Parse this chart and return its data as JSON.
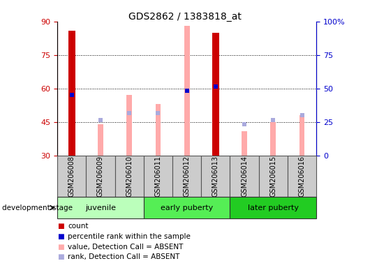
{
  "title": "GDS2862 / 1383818_at",
  "samples": [
    "GSM206008",
    "GSM206009",
    "GSM206010",
    "GSM206011",
    "GSM206012",
    "GSM206013",
    "GSM206014",
    "GSM206015",
    "GSM206016"
  ],
  "group_info": [
    {
      "label": "juvenile",
      "indices": [
        0,
        1,
        2
      ],
      "color": "#bbffbb"
    },
    {
      "label": "early puberty",
      "indices": [
        3,
        4,
        5
      ],
      "color": "#55ee55"
    },
    {
      "label": "later puberty",
      "indices": [
        6,
        7,
        8
      ],
      "color": "#22cc22"
    }
  ],
  "ylim_left": [
    30,
    90
  ],
  "ylim_right": [
    0,
    100
  ],
  "yticks_left": [
    30,
    45,
    60,
    75,
    90
  ],
  "yticks_right": [
    0,
    25,
    50,
    75,
    100
  ],
  "ytick_labels_right": [
    "0",
    "25",
    "50",
    "75",
    "100%"
  ],
  "count_values": [
    86,
    null,
    null,
    null,
    null,
    85,
    null,
    null,
    null
  ],
  "count_color": "#cc0000",
  "percentile_values": [
    57,
    null,
    null,
    null,
    59,
    61,
    null,
    null,
    null
  ],
  "percentile_color": "#0000cc",
  "absent_value_values": [
    null,
    44,
    57,
    53,
    88,
    null,
    41,
    45,
    48
  ],
  "absent_value_color": "#ffaaaa",
  "absent_rank_values": [
    null,
    46,
    49,
    49,
    null,
    null,
    44,
    46,
    48
  ],
  "absent_rank_color": "#aaaadd",
  "bar_bottom": 30,
  "grid_yticks": [
    45,
    60,
    75
  ],
  "tick_color_left": "#cc0000",
  "tick_color_right": "#0000cc",
  "legend_items": [
    {
      "color": "#cc0000",
      "label": "count",
      "type": "square"
    },
    {
      "color": "#0000cc",
      "label": "percentile rank within the sample",
      "type": "square"
    },
    {
      "color": "#ffaaaa",
      "label": "value, Detection Call = ABSENT",
      "type": "square"
    },
    {
      "color": "#aaaadd",
      "label": "rank, Detection Call = ABSENT",
      "type": "square"
    }
  ]
}
